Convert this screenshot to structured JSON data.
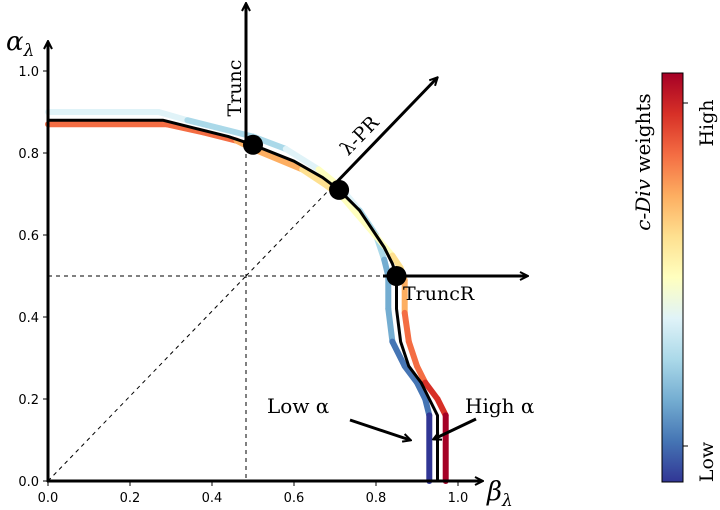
{
  "plot": {
    "x_axis_label": "β",
    "x_axis_sub": "λ",
    "y_axis_label": "α",
    "y_axis_sub": "λ",
    "x_ticks": [
      "0.0",
      "0.2",
      "0.4",
      "0.6",
      "0.8",
      "1.0"
    ],
    "y_ticks": [
      "0.0",
      "0.2",
      "0.4",
      "0.6",
      "0.8",
      "1.0"
    ]
  },
  "annotations": {
    "trunc": "Trunc",
    "lambda_pr": "λ-PR",
    "truncr": "TruncR",
    "low_alpha": "Low α",
    "high_alpha": "High α"
  },
  "colorbar": {
    "title_italic": "c-Div",
    "title_rest": " weights",
    "high_label": "High",
    "low_label": "Low",
    "colors": [
      "#313695",
      "#4575b4",
      "#74add1",
      "#abd9e9",
      "#e0f3f8",
      "#ffffbf",
      "#fee090",
      "#fdae61",
      "#f46d43",
      "#d73027",
      "#a50026"
    ]
  },
  "chart_data": {
    "type": "line",
    "xlim": [
      0,
      1.05
    ],
    "ylim": [
      0,
      1.0
    ],
    "curves": [
      {
        "id": "low-alpha",
        "x": [
          0.0,
          0.27,
          0.34,
          0.42,
          0.5,
          0.58,
          0.66,
          0.71,
          0.76,
          0.8,
          0.82,
          0.83,
          0.83,
          0.84,
          0.87,
          0.9,
          0.92,
          0.93,
          0.93
        ],
        "y": [
          0.9,
          0.9,
          0.88,
          0.86,
          0.84,
          0.81,
          0.76,
          0.72,
          0.66,
          0.6,
          0.54,
          0.5,
          0.42,
          0.34,
          0.28,
          0.24,
          0.2,
          0.16,
          0.0
        ]
      },
      {
        "id": "mid-alpha",
        "x": [
          0.0,
          0.28,
          0.36,
          0.44,
          0.5,
          0.6,
          0.67,
          0.71,
          0.76,
          0.82,
          0.84,
          0.85,
          0.85,
          0.86,
          0.88,
          0.91,
          0.93,
          0.95,
          0.95
        ],
        "y": [
          0.88,
          0.88,
          0.86,
          0.84,
          0.82,
          0.78,
          0.74,
          0.71,
          0.66,
          0.57,
          0.53,
          0.5,
          0.42,
          0.34,
          0.28,
          0.24,
          0.2,
          0.16,
          0.0
        ]
      },
      {
        "id": "high-alpha",
        "x": [
          0.0,
          0.29,
          0.38,
          0.46,
          0.5,
          0.62,
          0.68,
          0.72,
          0.78,
          0.84,
          0.86,
          0.87,
          0.87,
          0.88,
          0.9,
          0.92,
          0.95,
          0.97,
          0.97
        ],
        "y": [
          0.87,
          0.87,
          0.85,
          0.83,
          0.81,
          0.76,
          0.72,
          0.69,
          0.62,
          0.55,
          0.52,
          0.49,
          0.41,
          0.34,
          0.28,
          0.24,
          0.2,
          0.16,
          0.0
        ]
      }
    ],
    "operating_points": [
      {
        "id": "trunc",
        "x": 0.5,
        "y": 0.82
      },
      {
        "id": "lambda-pr",
        "x": 0.71,
        "y": 0.71
      },
      {
        "id": "truncr",
        "x": 0.85,
        "y": 0.5
      }
    ]
  }
}
